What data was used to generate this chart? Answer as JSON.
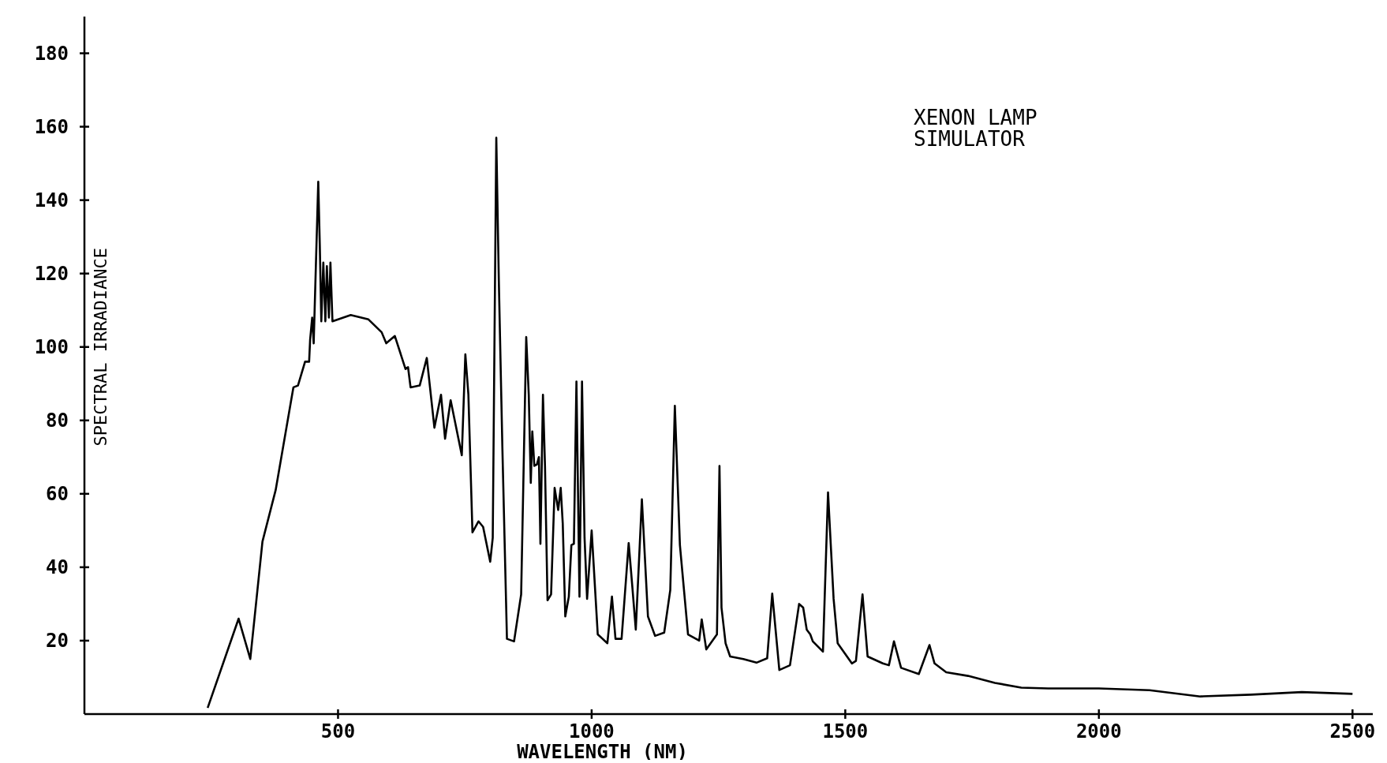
{
  "chart_data": {
    "type": "line",
    "xlabel": "WAVELENGTH (NM)",
    "ylabel": "SPECTRAL IRRADIANCE",
    "annotations": [
      "XENON LAMP\nSIMULATOR"
    ],
    "xlim": [
      0,
      2540
    ],
    "ylim": [
      0,
      190
    ],
    "xticks": [
      500,
      1000,
      1500,
      2000,
      2500
    ],
    "yticks": [
      20,
      40,
      60,
      80,
      100,
      120,
      140,
      160,
      180
    ],
    "marker": "none",
    "line_style": "solid",
    "series": [
      {
        "color": "#000000",
        "x": [
          243,
          304,
          327,
          351,
          377,
          412,
          421,
          435,
          443,
          445,
          449,
          452,
          461,
          464,
          467,
          471,
          475,
          478,
          482,
          485,
          489,
          525,
          560,
          586,
          595,
          612,
          633,
          638,
          643,
          661,
          675,
          690,
          703,
          711,
          722,
          744,
          751,
          757,
          765,
          777,
          786,
          800,
          805,
          812,
          817,
          824,
          833,
          847,
          861,
          871,
          876,
          880,
          883,
          887,
          892,
          896,
          899,
          904,
          908,
          913,
          920,
          927,
          934,
          939,
          943,
          948,
          955,
          960,
          965,
          970,
          976,
          981,
          986,
          991,
          1000,
          1012,
          1031,
          1040,
          1047,
          1059,
          1073,
          1080,
          1087,
          1099,
          1111,
          1125,
          1143,
          1155,
          1164,
          1174,
          1190,
          1212,
          1217,
          1226,
          1247,
          1252,
          1256,
          1264,
          1273,
          1299,
          1325,
          1346,
          1356,
          1370,
          1391,
          1409,
          1417,
          1424,
          1431,
          1436,
          1456,
          1466,
          1477,
          1485,
          1513,
          1521,
          1534,
          1544,
          1574,
          1586,
          1596,
          1610,
          1645,
          1666,
          1676,
          1699,
          1742,
          1795,
          1847,
          1900,
          2000,
          2100,
          2200,
          2300,
          2400,
          2500
        ],
        "values": [
          1.7,
          26,
          15,
          47,
          61,
          89,
          89.5,
          96,
          96,
          102,
          108,
          101,
          145,
          128,
          107,
          123,
          107,
          122,
          108,
          123,
          107,
          108.7,
          107.5,
          104,
          101,
          103,
          94,
          94.5,
          89,
          89.5,
          97,
          78,
          87,
          75,
          85.5,
          70.5,
          98,
          87,
          49.5,
          52.5,
          51,
          41.5,
          48,
          157,
          118,
          72.5,
          20.5,
          19.8,
          32.6,
          102.7,
          87,
          63,
          77,
          67.6,
          68,
          70,
          46.4,
          87,
          67.6,
          31,
          32.6,
          61.6,
          55.6,
          61.6,
          52,
          26.6,
          32,
          46,
          46.4,
          90.6,
          32,
          90.6,
          48,
          31.4,
          50,
          21.7,
          19.3,
          32,
          20.5,
          20.5,
          46.6,
          35,
          23,
          58.5,
          26.6,
          21.3,
          22.2,
          33.8,
          84,
          46,
          21.7,
          20,
          25.8,
          17.6,
          21.7,
          67.6,
          29,
          19.3,
          15.7,
          15,
          14,
          15.2,
          32.8,
          12,
          13.3,
          30,
          29,
          23,
          21.7,
          19.8,
          17,
          60.4,
          31.4,
          19.3,
          13.8,
          14.5,
          32.6,
          15.7,
          13.8,
          13.3,
          19.8,
          12.6,
          10.9,
          18.8,
          13.8,
          11.4,
          10.4,
          8.5,
          7.2,
          7,
          7,
          6.5,
          4.8,
          5.3,
          6,
          5.5
        ]
      }
    ]
  }
}
